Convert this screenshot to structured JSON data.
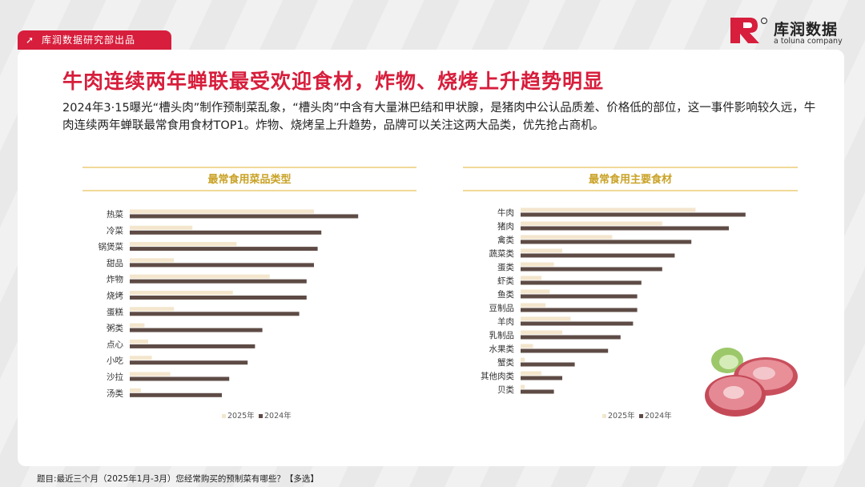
{
  "header": {
    "tag_label": "库润数据研究部出品",
    "brand_name": "库润数据",
    "brand_sub": "a toluna company"
  },
  "title": "牛肉连续两年蝉联最受欢迎食材，炸物、烧烤上升趋势明显",
  "description": "2024年3·15曝光“槽头肉”制作预制菜乱象，“槽头肉”中含有大量淋巴结和甲状腺，是猪肉中公认品质差、价格低的部位，这一事件影响较久远，牛肉连续两年蝉联最常食用食材TOP1。炸物、烧烤呈上升趋势，品牌可以关注这两大品类，优先抢占商机。",
  "footnote": "题目:最近三个月（2025年1月-3月）您经常购买的预制菜有哪些？【多选】",
  "colors": {
    "series_2025": "#f3e6cd",
    "series_2024": "#5e4b45",
    "accent": "#d71e3c",
    "chart_rule": "#e6c25a",
    "chart_title": "#c9a227"
  },
  "chart_data": [
    {
      "type": "bar",
      "orientation": "horizontal",
      "title": "最常食用菜品类型",
      "categories": [
        "热菜",
        "冷菜",
        "锅煲菜",
        "甜品",
        "炸物",
        "烧烤",
        "蛋糕",
        "粥类",
        "点心",
        "小吃",
        "沙拉",
        "汤类"
      ],
      "series": [
        {
          "name": "2025年",
          "values": [
            50,
            17,
            29,
            12,
            38,
            28,
            12,
            4,
            5,
            6,
            11,
            3
          ]
        },
        {
          "name": "2024年",
          "values": [
            62,
            52,
            51,
            50,
            48,
            48,
            46,
            36,
            34,
            32,
            27,
            25
          ]
        }
      ],
      "legend": "bottom",
      "grid": false
    },
    {
      "type": "bar",
      "orientation": "horizontal",
      "title": "最常食用主要食材",
      "categories": [
        "牛肉",
        "猪肉",
        "禽类",
        "蔬菜类",
        "蛋类",
        "虾类",
        "鱼类",
        "豆制品",
        "羊肉",
        "乳制品",
        "水果类",
        "蟹类",
        "其他肉类",
        "贝类"
      ],
      "series": [
        {
          "name": "2025年",
          "values": [
            42,
            34,
            22,
            10,
            8,
            5,
            7,
            6,
            12,
            10,
            3,
            1,
            5,
            1
          ]
        },
        {
          "name": "2024年",
          "values": [
            54,
            50,
            41,
            37,
            34,
            29,
            28,
            28,
            27,
            24,
            21,
            13,
            10,
            8
          ]
        }
      ],
      "legend": "bottom",
      "grid": false
    }
  ]
}
